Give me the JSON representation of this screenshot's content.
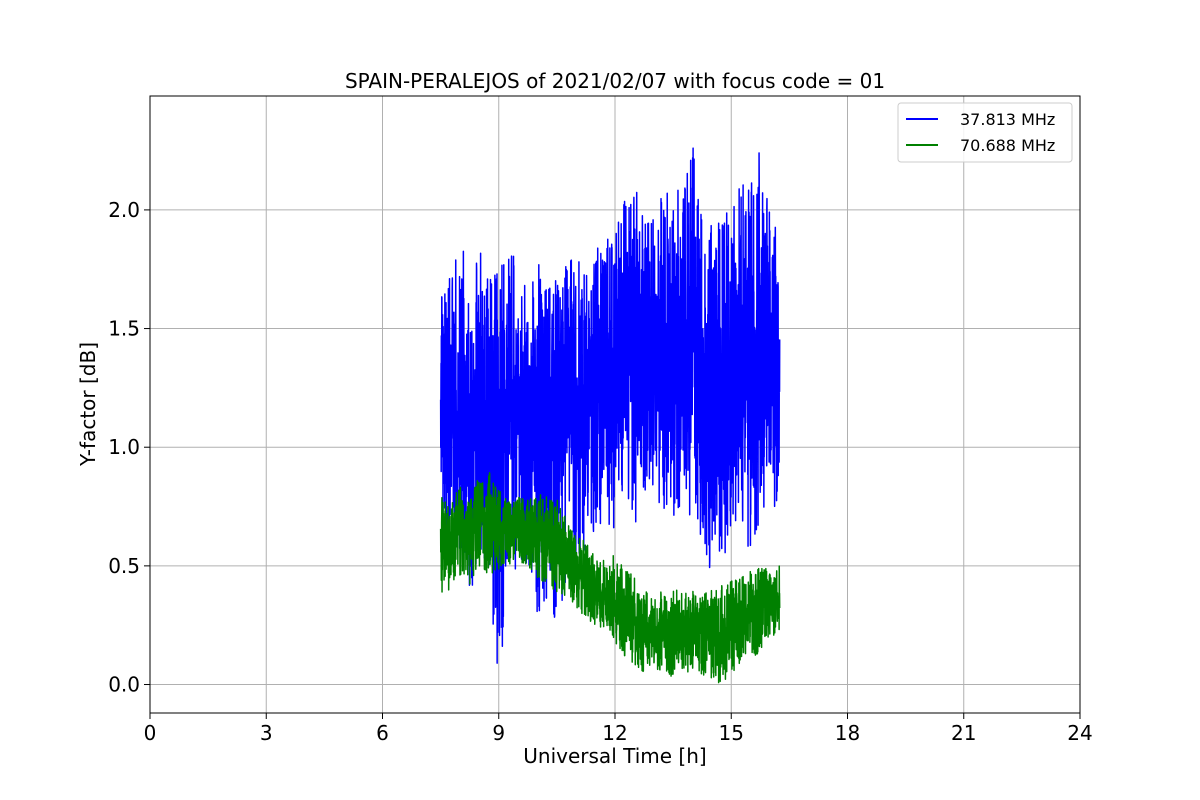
{
  "chart_data": {
    "type": "line",
    "title": "SPAIN-PERALEJOS of 2021/02/07 with focus code = 01",
    "xlabel": "Universal Time [h]",
    "ylabel": "Y-factor [dB]",
    "xlim": [
      0,
      24
    ],
    "ylim": [
      -0.12,
      2.48
    ],
    "xticks": [
      0,
      3,
      6,
      9,
      12,
      15,
      18,
      21,
      24
    ],
    "yticks": [
      0.0,
      0.5,
      1.0,
      1.5,
      2.0
    ],
    "xtick_labels": [
      "0",
      "3",
      "6",
      "9",
      "12",
      "15",
      "18",
      "21",
      "24"
    ],
    "ytick_labels": [
      "0.0",
      "0.5",
      "1.0",
      "1.5",
      "2.0"
    ],
    "grid": true,
    "legend_position": "top-right",
    "series": [
      {
        "name": "37.813 MHz",
        "color": "#0000ff",
        "x": [
          7.5,
          7.75,
          8.0,
          8.25,
          8.5,
          8.75,
          9.0,
          9.25,
          9.5,
          9.75,
          10.0,
          10.25,
          10.5,
          10.75,
          11.0,
          11.25,
          11.5,
          11.75,
          12.0,
          12.25,
          12.5,
          12.75,
          13.0,
          13.25,
          13.5,
          13.75,
          14.0,
          14.25,
          14.5,
          14.75,
          15.0,
          15.25,
          15.5,
          15.75,
          16.0,
          16.25
        ],
        "min": [
          0.75,
          0.45,
          0.4,
          0.35,
          0.55,
          0.4,
          0.0,
          0.3,
          0.55,
          0.4,
          0.3,
          0.35,
          0.2,
          0.45,
          0.45,
          0.55,
          0.65,
          0.7,
          0.6,
          0.75,
          0.65,
          0.75,
          0.8,
          0.7,
          0.65,
          0.7,
          0.7,
          0.55,
          0.45,
          0.5,
          0.65,
          0.5,
          0.55,
          0.7,
          0.75,
          0.72
        ],
        "max": [
          1.65,
          1.8,
          1.85,
          1.8,
          1.85,
          1.7,
          1.75,
          1.9,
          1.75,
          1.65,
          1.8,
          1.65,
          1.75,
          1.8,
          1.85,
          1.75,
          1.85,
          1.9,
          1.95,
          2.05,
          2.1,
          2.05,
          2.0,
          2.1,
          2.05,
          2.15,
          2.35,
          2.0,
          1.95,
          2.0,
          2.05,
          2.1,
          2.15,
          2.3,
          2.05,
          1.85
        ],
        "mean": [
          1.2,
          1.15,
          1.15,
          1.1,
          1.2,
          1.1,
          1.1,
          1.15,
          1.1,
          1.1,
          1.1,
          1.05,
          1.05,
          1.15,
          1.2,
          1.2,
          1.25,
          1.3,
          1.3,
          1.35,
          1.35,
          1.4,
          1.4,
          1.4,
          1.35,
          1.4,
          1.4,
          1.35,
          1.3,
          1.3,
          1.35,
          1.35,
          1.35,
          1.4,
          1.35,
          1.3
        ]
      },
      {
        "name": "70.688 MHz",
        "color": "#008000",
        "x": [
          7.5,
          7.75,
          8.0,
          8.25,
          8.5,
          8.75,
          9.0,
          9.25,
          9.5,
          9.75,
          10.0,
          10.25,
          10.5,
          10.75,
          11.0,
          11.25,
          11.5,
          11.75,
          12.0,
          12.25,
          12.5,
          12.75,
          13.0,
          13.25,
          13.5,
          13.75,
          14.0,
          14.25,
          14.5,
          14.75,
          15.0,
          15.25,
          15.5,
          15.75,
          16.0,
          16.25
        ],
        "min": [
          0.38,
          0.4,
          0.45,
          0.42,
          0.5,
          0.45,
          0.48,
          0.5,
          0.52,
          0.5,
          0.45,
          0.42,
          0.38,
          0.35,
          0.32,
          0.28,
          0.25,
          0.22,
          0.18,
          0.12,
          0.08,
          0.05,
          0.04,
          0.05,
          0.03,
          0.04,
          0.05,
          0.03,
          0.02,
          0.0,
          0.05,
          0.08,
          0.1,
          0.12,
          0.18,
          0.22
        ],
        "max": [
          0.8,
          0.75,
          0.85,
          0.8,
          0.88,
          0.9,
          0.82,
          0.78,
          0.8,
          0.78,
          0.8,
          0.8,
          0.78,
          0.7,
          0.65,
          0.6,
          0.55,
          0.52,
          0.55,
          0.5,
          0.45,
          0.42,
          0.4,
          0.4,
          0.42,
          0.38,
          0.4,
          0.38,
          0.4,
          0.42,
          0.45,
          0.45,
          0.48,
          0.5,
          0.48,
          0.52
        ],
        "mean": [
          0.6,
          0.6,
          0.65,
          0.62,
          0.7,
          0.68,
          0.65,
          0.65,
          0.66,
          0.65,
          0.63,
          0.6,
          0.57,
          0.53,
          0.48,
          0.44,
          0.4,
          0.37,
          0.35,
          0.32,
          0.28,
          0.25,
          0.24,
          0.23,
          0.22,
          0.22,
          0.23,
          0.22,
          0.21,
          0.22,
          0.25,
          0.27,
          0.3,
          0.32,
          0.34,
          0.37
        ]
      }
    ]
  }
}
